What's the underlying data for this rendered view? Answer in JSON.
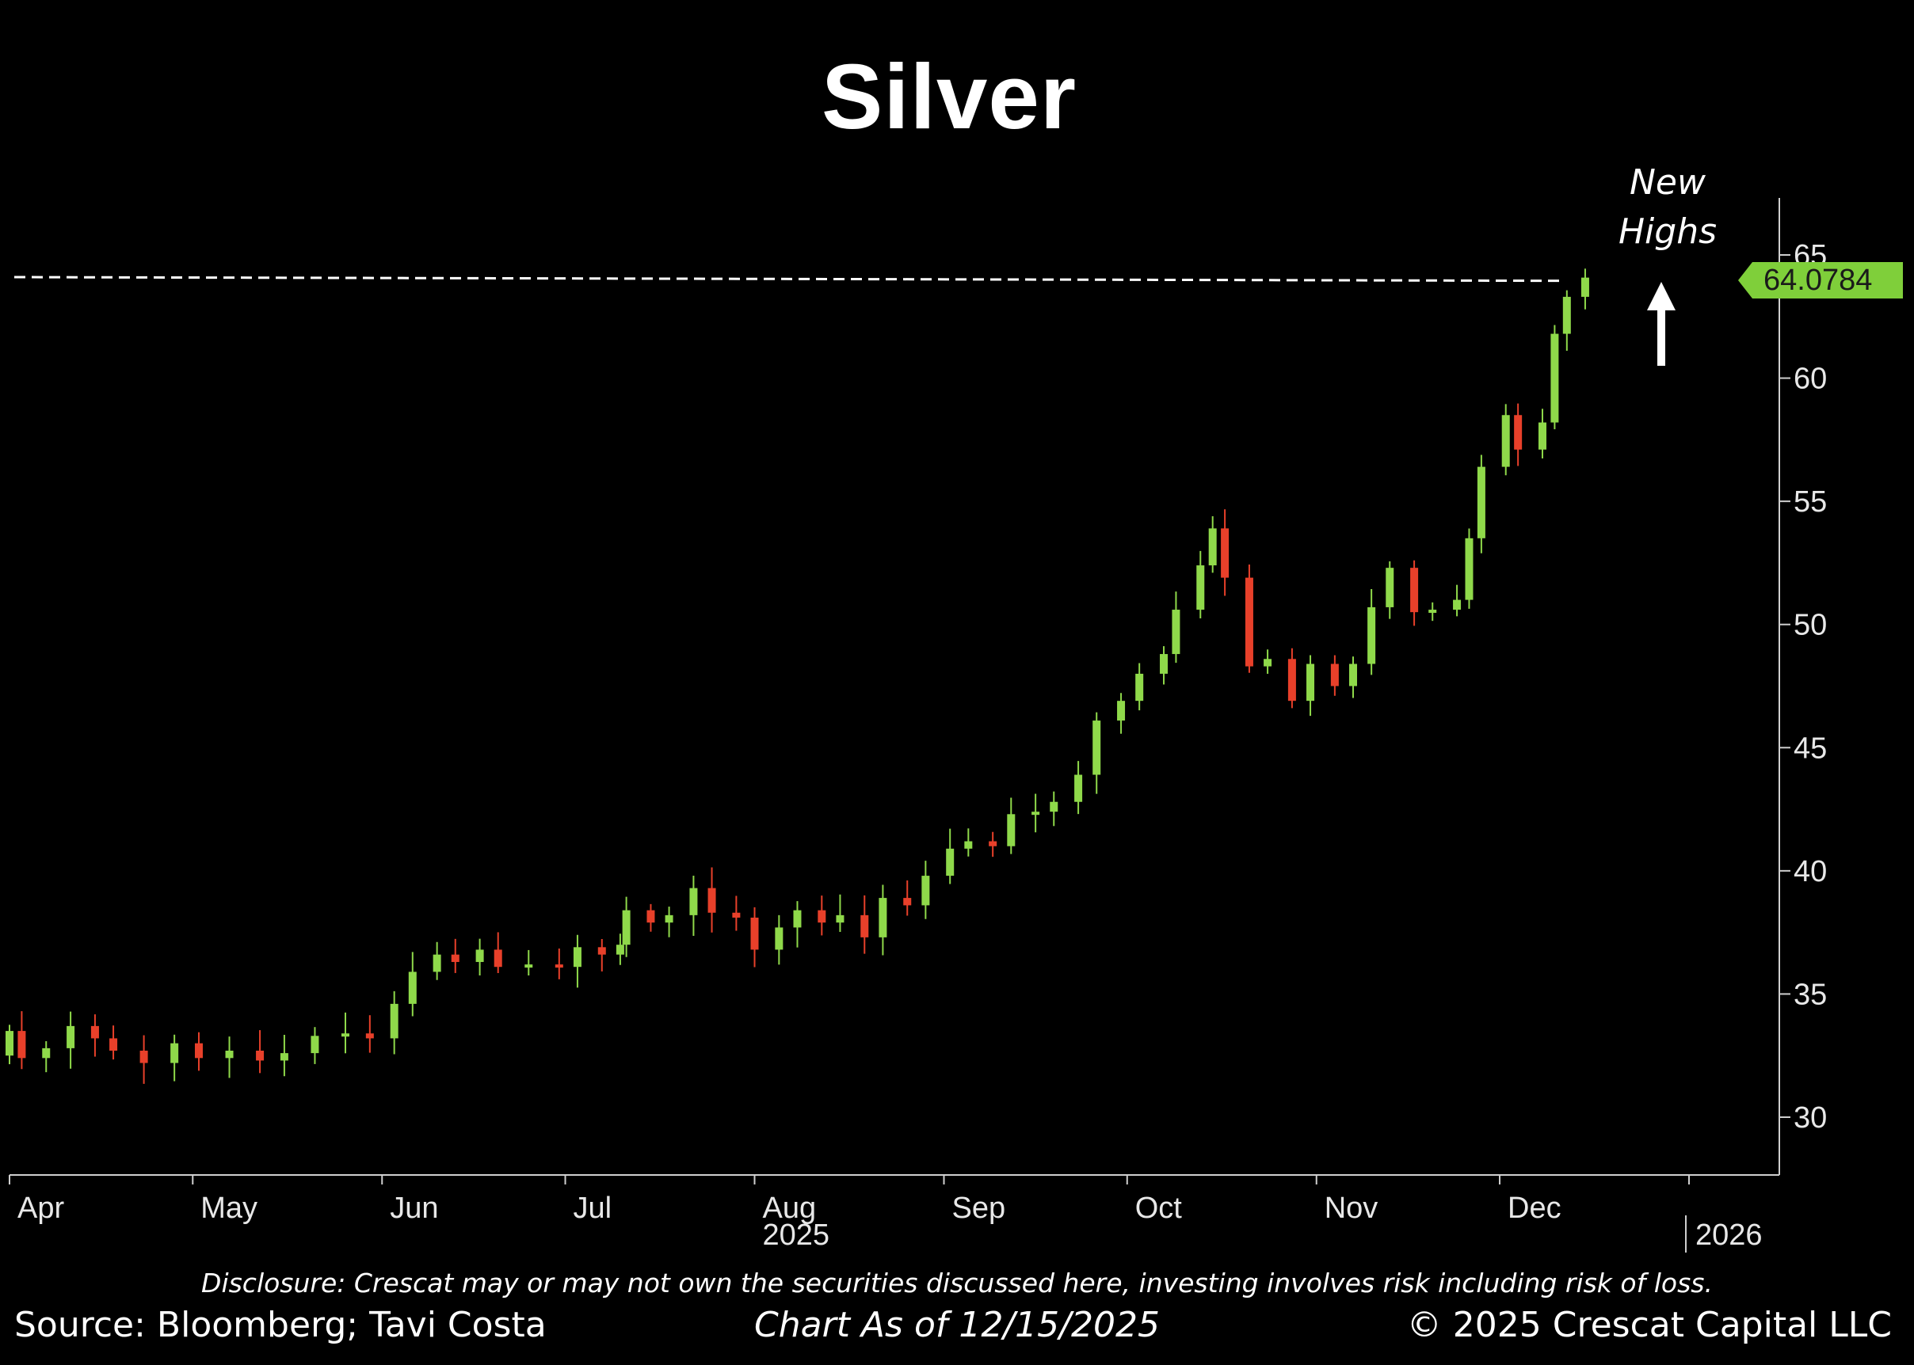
{
  "chart_data": {
    "type": "candlestick",
    "title": "Silver",
    "ylim": [
      28,
      68
    ],
    "yticks": [
      30,
      35,
      40,
      45,
      50,
      55,
      60,
      65
    ],
    "x_start": "2025-04-01",
    "x_end": "2026-01-01",
    "month_ticks": [
      {
        "date": "2025-04-01",
        "label": "Apr"
      },
      {
        "date": "2025-05-01",
        "label": "May"
      },
      {
        "date": "2025-06-01",
        "label": "Jun"
      },
      {
        "date": "2025-07-01",
        "label": "Jul"
      },
      {
        "date": "2025-08-01",
        "label": "Aug"
      },
      {
        "date": "2025-09-01",
        "label": "Sep"
      },
      {
        "date": "2025-10-01",
        "label": "Oct"
      },
      {
        "date": "2025-11-01",
        "label": "Nov"
      },
      {
        "date": "2025-12-01",
        "label": "Dec"
      },
      {
        "date": "2026-01-01",
        "label": ""
      }
    ],
    "year_labels": [
      {
        "label": "2025",
        "date": "2025-08-01"
      },
      {
        "label": "2026",
        "date": "2026-01-01"
      }
    ],
    "last_price": 64.0784,
    "last_price_label": "64.0784",
    "prior_high_line": 64.0784,
    "closes": [
      [
        "2025-04-01",
        33.5
      ],
      [
        "2025-04-03",
        32.4
      ],
      [
        "2025-04-07",
        32.8
      ],
      [
        "2025-04-11",
        33.7
      ],
      [
        "2025-04-15",
        33.2
      ],
      [
        "2025-04-18",
        32.7
      ],
      [
        "2025-04-23",
        32.2
      ],
      [
        "2025-04-28",
        33.0
      ],
      [
        "2025-05-02",
        32.4
      ],
      [
        "2025-05-07",
        32.7
      ],
      [
        "2025-05-12",
        32.3
      ],
      [
        "2025-05-16",
        32.6
      ],
      [
        "2025-05-21",
        33.3
      ],
      [
        "2025-05-26",
        33.4
      ],
      [
        "2025-05-30",
        33.2
      ],
      [
        "2025-06-03",
        34.6
      ],
      [
        "2025-06-06",
        35.9
      ],
      [
        "2025-06-10",
        36.6
      ],
      [
        "2025-06-13",
        36.3
      ],
      [
        "2025-06-17",
        36.8
      ],
      [
        "2025-06-20",
        36.1
      ],
      [
        "2025-06-25",
        36.2
      ],
      [
        "2025-06-30",
        36.1
      ],
      [
        "2025-07-03",
        36.9
      ],
      [
        "2025-07-07",
        36.6
      ],
      [
        "2025-07-10",
        37.0
      ],
      [
        "2025-07-11",
        38.4
      ],
      [
        "2025-07-15",
        37.9
      ],
      [
        "2025-07-18",
        38.2
      ],
      [
        "2025-07-22",
        39.3
      ],
      [
        "2025-07-25",
        38.3
      ],
      [
        "2025-07-29",
        38.1
      ],
      [
        "2025-08-01",
        36.8
      ],
      [
        "2025-08-05",
        37.7
      ],
      [
        "2025-08-08",
        38.4
      ],
      [
        "2025-08-12",
        37.9
      ],
      [
        "2025-08-15",
        38.2
      ],
      [
        "2025-08-19",
        37.3
      ],
      [
        "2025-08-22",
        38.9
      ],
      [
        "2025-08-26",
        38.6
      ],
      [
        "2025-08-29",
        39.8
      ],
      [
        "2025-09-02",
        40.9
      ],
      [
        "2025-09-05",
        41.2
      ],
      [
        "2025-09-09",
        41.0
      ],
      [
        "2025-09-12",
        42.3
      ],
      [
        "2025-09-16",
        42.4
      ],
      [
        "2025-09-19",
        42.8
      ],
      [
        "2025-09-23",
        43.9
      ],
      [
        "2025-09-26",
        46.1
      ],
      [
        "2025-09-30",
        46.9
      ],
      [
        "2025-10-03",
        48.0
      ],
      [
        "2025-10-07",
        48.8
      ],
      [
        "2025-10-09",
        50.6
      ],
      [
        "2025-10-13",
        52.4
      ],
      [
        "2025-10-15",
        53.9
      ],
      [
        "2025-10-17",
        51.9
      ],
      [
        "2025-10-21",
        48.3
      ],
      [
        "2025-10-24",
        48.6
      ],
      [
        "2025-10-28",
        46.9
      ],
      [
        "2025-10-31",
        48.4
      ],
      [
        "2025-11-04",
        47.5
      ],
      [
        "2025-11-07",
        48.4
      ],
      [
        "2025-11-10",
        50.7
      ],
      [
        "2025-11-13",
        52.3
      ],
      [
        "2025-11-17",
        50.5
      ],
      [
        "2025-11-20",
        50.6
      ],
      [
        "2025-11-24",
        51.0
      ],
      [
        "2025-11-26",
        53.5
      ],
      [
        "2025-11-28",
        56.4
      ],
      [
        "2025-12-02",
        58.5
      ],
      [
        "2025-12-04",
        57.1
      ],
      [
        "2025-12-08",
        58.2
      ],
      [
        "2025-12-10",
        61.8
      ],
      [
        "2025-12-12",
        63.3
      ],
      [
        "2025-12-15",
        64.08
      ]
    ]
  },
  "annotation": {
    "line1": "New",
    "line2": "Highs"
  },
  "footer": {
    "disclosure": "Disclosure: Crescat may or may not own the securities discussed here, investing involves risk including risk of loss.",
    "source": "Source: Bloomberg; Tavi Costa",
    "chart_as_of": "Chart As of 12/15/2025",
    "copyright": "© 2025 Crescat Capital LLC"
  },
  "colors": {
    "up": "#8fd94a",
    "down": "#e8402a",
    "axis": "#cfcfcf",
    "dashed": "#ffffff",
    "badge": "#7fcf3a"
  }
}
